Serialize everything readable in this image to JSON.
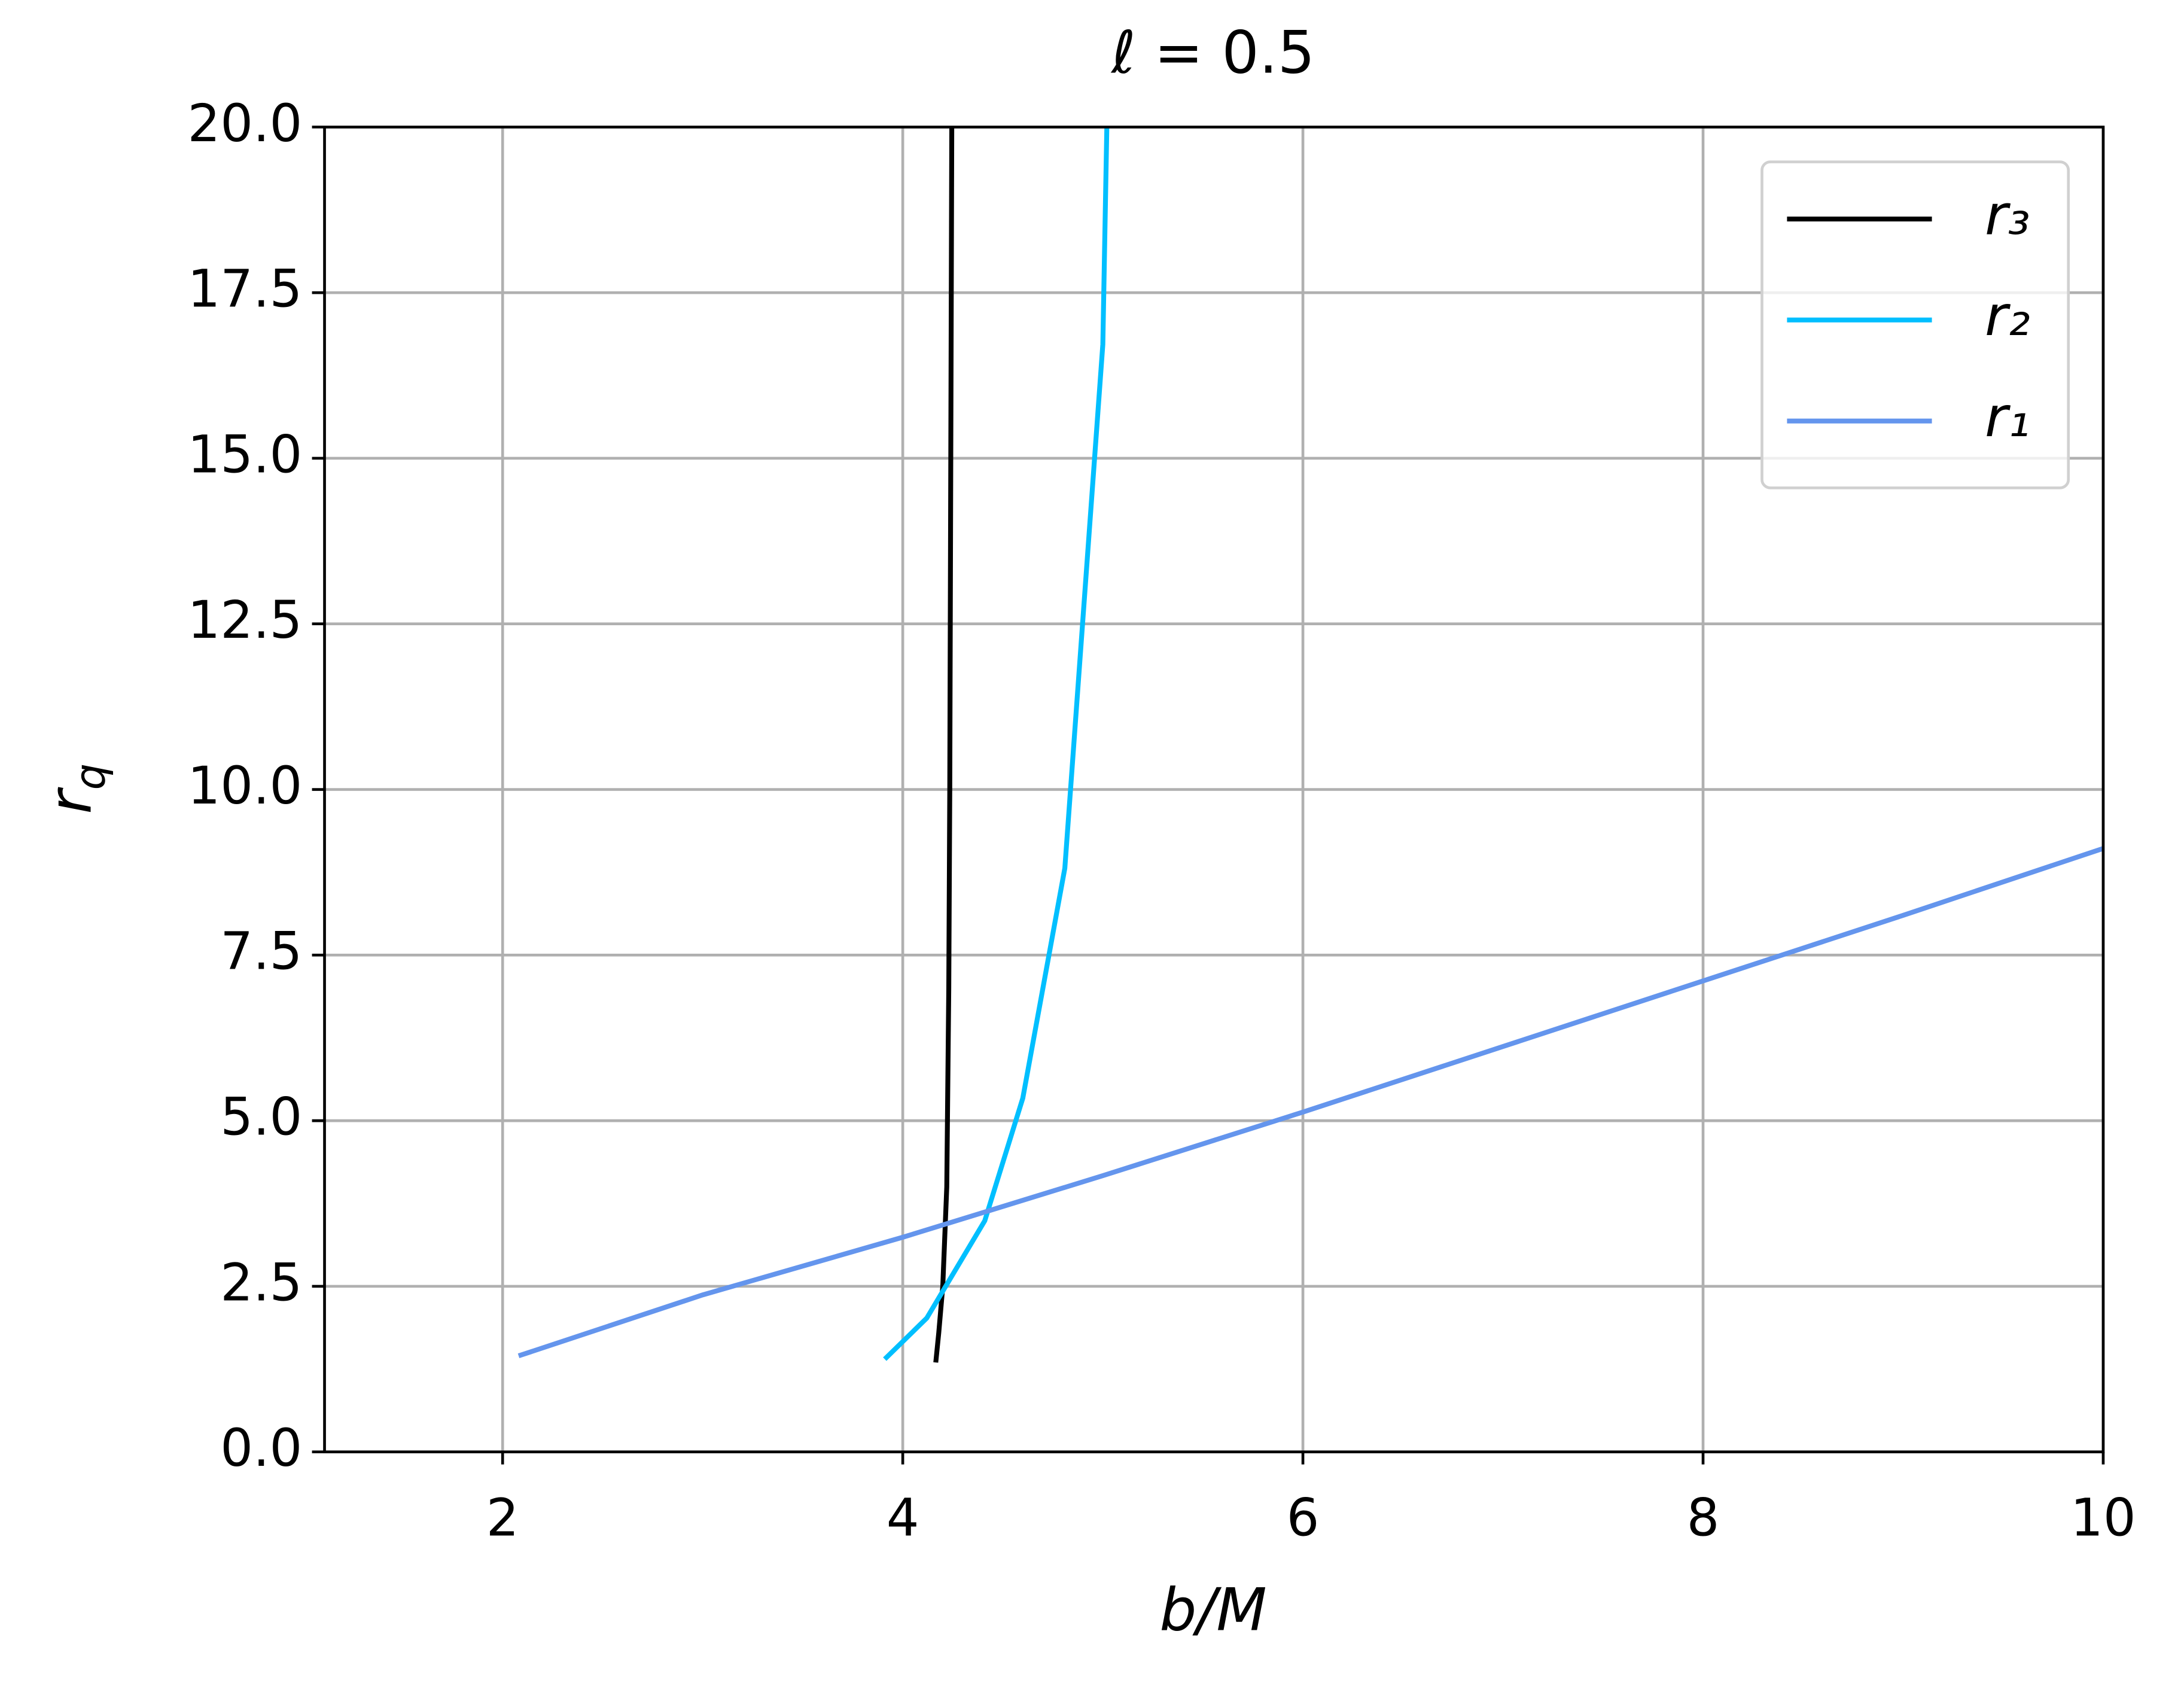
{
  "chart_data": {
    "type": "line",
    "title": "ℓ = 0.5",
    "xlabel": "b/M",
    "ylabel": {
      "text": "r",
      "subscript": "q"
    },
    "xlim": [
      1.11,
      10
    ],
    "ylim": [
      0,
      20
    ],
    "xticks": [
      2,
      4,
      6,
      8,
      10
    ],
    "yticks": [
      {
        "value": 0,
        "label": "0.0"
      },
      2.5,
      {
        "value": 5,
        "label": "5.0"
      },
      7.5,
      {
        "value": 10,
        "label": "10.0"
      },
      12.5,
      {
        "value": 15,
        "label": "15.0"
      },
      17.5,
      {
        "value": 20,
        "label": "20.0"
      }
    ],
    "grid": true,
    "legend": "upper right",
    "series": [
      {
        "name": "r₃",
        "color": "#000000",
        "x": [
          4.165,
          4.18,
          4.2,
          4.22,
          4.23,
          4.235,
          4.24,
          4.245
        ],
        "values": [
          1.35,
          1.8,
          2.5,
          4,
          7,
          10,
          15,
          20
        ]
      },
      {
        "name": "r₂",
        "color": "#00bfff",
        "x": [
          3.91,
          4.12,
          4.41,
          4.6,
          4.81,
          5.0,
          5.02
        ],
        "values": [
          1.4,
          2.02,
          3.49,
          5.34,
          8.81,
          16.72,
          20
        ]
      },
      {
        "name": "r₁",
        "color": "#6495ed",
        "x": [
          2.08,
          3,
          4,
          5,
          6,
          7,
          8,
          9,
          10
        ],
        "values": [
          1.45,
          2.37,
          3.24,
          4.17,
          5.13,
          6.12,
          7.11,
          8.1,
          9.11
        ]
      }
    ]
  }
}
